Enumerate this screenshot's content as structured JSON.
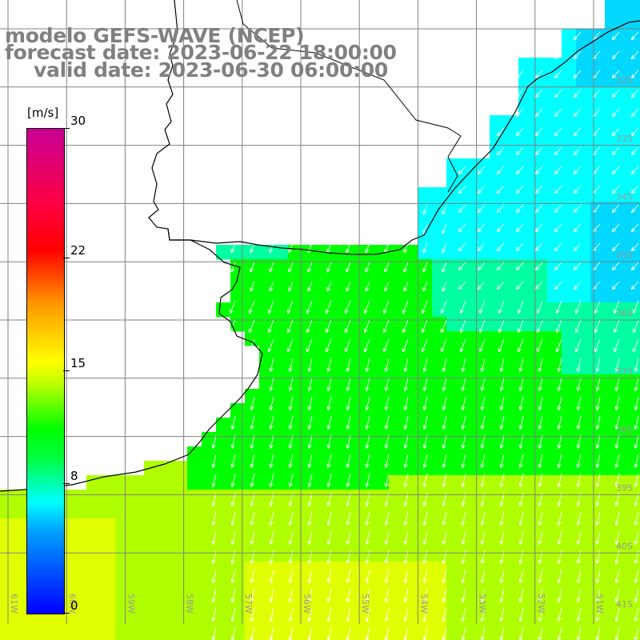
{
  "title": {
    "model": "modelo GEFS-WAVE (NCEP)",
    "forecast": "forecast date: 2023-06-22 18:00:00",
    "valid": "valid date: 2023-06-30 06:00:00"
  },
  "colorbar": {
    "unit": "[m/s]",
    "min": 0,
    "max": 30,
    "ticks": [
      {
        "value": 30,
        "label": "30"
      },
      {
        "value": 22,
        "label": "22"
      },
      {
        "value": 15,
        "label": "15"
      },
      {
        "value": 8,
        "label": "8"
      },
      {
        "value": 0,
        "label": "0"
      }
    ],
    "colors": [
      "#0000ff",
      "#00a0ff",
      "#00ffff",
      "#00ff40",
      "#00ff00",
      "#c8ff00",
      "#ffff00",
      "#ff9600",
      "#ff0000",
      "#ff0040",
      "#c80096"
    ]
  },
  "map": {
    "lon_labels": [
      "61W",
      "60W",
      "59W",
      "58W",
      "57W",
      "56W",
      "55W",
      "54W",
      "53W",
      "52W",
      "51W"
    ],
    "lat_labels": [
      "32S",
      "33S",
      "34S",
      "35S",
      "36S",
      "37S",
      "38S",
      "39S",
      "40S",
      "41S"
    ],
    "field_colors": {
      "cyan": "#00ffff",
      "sky": "#00d8ff",
      "aqua": "#00ffa0",
      "green": "#00ff00",
      "lime": "#b0ff00",
      "yellow": "#e0ff00"
    },
    "land_color": "#ffffff",
    "grid_color": "#808080",
    "coast_color": "#000000",
    "arrow_color": "#ffffff"
  }
}
